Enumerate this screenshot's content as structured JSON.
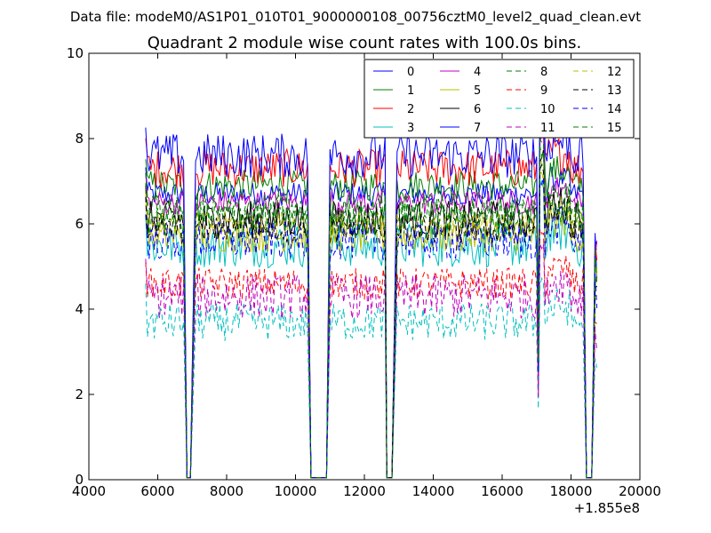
{
  "chart_data": {
    "type": "line",
    "suptitle": "Data file: modeM0/AS1P01_010T01_9000000108_00756cztM0_level2_quad_clean.evt",
    "title": "Quadrant 2 module wise count rates with 100.0s bins.",
    "xlabel": "",
    "ylabel": "",
    "xlim": [
      4000,
      20000
    ],
    "ylim": [
      0,
      10
    ],
    "x_offset_label": "+1.855e8",
    "xticks": [
      4000,
      6000,
      8000,
      10000,
      12000,
      14000,
      16000,
      18000,
      20000
    ],
    "xtick_labels": [
      "4000",
      "6000",
      "8000",
      "10000",
      "12000",
      "14000",
      "16000",
      "18000",
      "20000"
    ],
    "yticks": [
      0,
      2,
      4,
      6,
      8,
      10
    ],
    "ytick_labels": [
      "0",
      "2",
      "4",
      "6",
      "8",
      "10"
    ],
    "grid": false,
    "legend_position": "top-right",
    "legend_columns": 4,
    "segments": [
      {
        "start": 5650,
        "end": 6750
      },
      {
        "start": 7100,
        "end": 10350
      },
      {
        "start": 11000,
        "end": 12600
      },
      {
        "start": 12950,
        "end": 18350
      },
      {
        "start": 18700,
        "end": 18750
      }
    ],
    "gaps": [
      {
        "start": 6850,
        "end": 6950
      },
      {
        "start": 10450,
        "end": 10900
      },
      {
        "start": 12650,
        "end": 12800
      },
      {
        "start": 18450,
        "end": 18600
      }
    ],
    "flare": {
      "dip_at": 17050,
      "peak_at": 17150
    },
    "series": [
      {
        "name": "0",
        "color": "#0000ff",
        "dash": "solid",
        "level": 6.7
      },
      {
        "name": "1",
        "color": "#008000",
        "dash": "solid",
        "level": 6.9
      },
      {
        "name": "2",
        "color": "#ff0000",
        "dash": "solid",
        "level": 7.3
      },
      {
        "name": "3",
        "color": "#00bfbf",
        "dash": "solid",
        "level": 5.5
      },
      {
        "name": "4",
        "color": "#bf00bf",
        "dash": "solid",
        "level": 6.5
      },
      {
        "name": "5",
        "color": "#bfbf00",
        "dash": "solid",
        "level": 5.7
      },
      {
        "name": "6",
        "color": "#000000",
        "dash": "solid",
        "level": 6.1
      },
      {
        "name": "7",
        "color": "#0000ff",
        "dash": "solid",
        "level": 7.6
      },
      {
        "name": "8",
        "color": "#008000",
        "dash": "dashed",
        "level": 6.3
      },
      {
        "name": "9",
        "color": "#ff0000",
        "dash": "dashed",
        "level": 4.6
      },
      {
        "name": "10",
        "color": "#00bfbf",
        "dash": "dashed",
        "level": 3.7
      },
      {
        "name": "11",
        "color": "#bf00bf",
        "dash": "dashed",
        "level": 4.3
      },
      {
        "name": "12",
        "color": "#bfbf00",
        "dash": "dashed",
        "level": 6.0
      },
      {
        "name": "13",
        "color": "#000000",
        "dash": "dashed",
        "level": 5.9
      },
      {
        "name": "14",
        "color": "#0000ff",
        "dash": "dashed",
        "level": 5.6
      },
      {
        "name": "15",
        "color": "#008000",
        "dash": "dashed",
        "level": 6.2
      }
    ]
  }
}
